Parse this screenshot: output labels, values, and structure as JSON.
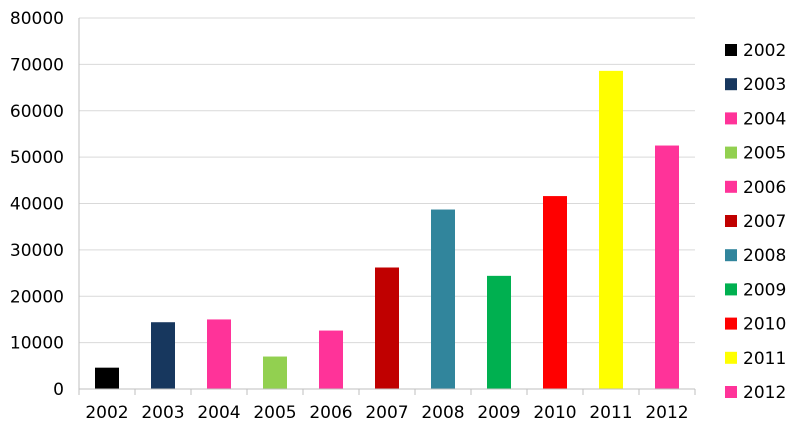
{
  "chart_data": {
    "type": "bar",
    "categories": [
      "2002",
      "2003",
      "2004",
      "2005",
      "2006",
      "2007",
      "2008",
      "2009",
      "2010",
      "2011",
      "2012"
    ],
    "values": [
      4600,
      14400,
      15000,
      7000,
      12600,
      26200,
      38700,
      24400,
      41600,
      68600,
      52500
    ],
    "colors": [
      "#000000",
      "#17375e",
      "#ff3399",
      "#92d050",
      "#ff3399",
      "#c00000",
      "#31859c",
      "#00b050",
      "#ff0000",
      "#ffff00",
      "#ff3399"
    ],
    "ylim": [
      0,
      80000
    ],
    "y_ticks": [
      "0",
      "10000",
      "20000",
      "30000",
      "40000",
      "50000",
      "60000",
      "70000",
      "80000"
    ],
    "grid": true,
    "legend_placement": "right",
    "legend": [
      "2002",
      "2003",
      "2004",
      "2005",
      "2006",
      "2007",
      "2008",
      "2009",
      "2010",
      "2011",
      "2012"
    ]
  }
}
